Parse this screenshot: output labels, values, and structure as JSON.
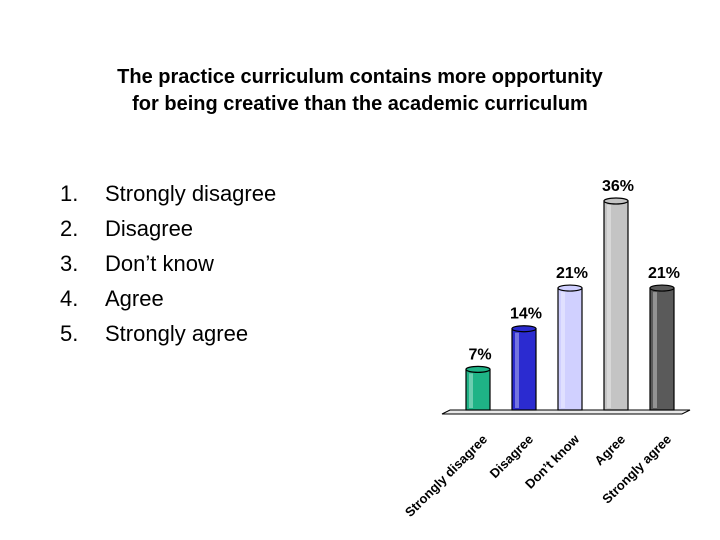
{
  "slide": {
    "title_line1": "The practice curriculum contains more opportunity",
    "title_line2": "for being creative than the academic curriculum",
    "options": [
      {
        "number": "1.",
        "label": "Strongly disagree"
      },
      {
        "number": "2.",
        "label": "Disagree"
      },
      {
        "number": "3.",
        "label": "Don’t know"
      },
      {
        "number": "4.",
        "label": "Agree"
      },
      {
        "number": "5.",
        "label": "Strongly agree"
      }
    ]
  },
  "chart_data": {
    "type": "bar",
    "title": "",
    "xlabel": "",
    "ylabel": "",
    "categories": [
      "Strongly disagree",
      "Disagree",
      "Don’t know",
      "Agree",
      "Strongly agree"
    ],
    "values": [
      7,
      14,
      21,
      36,
      21
    ],
    "value_labels": [
      "7%",
      "14%",
      "21%",
      "36%",
      "21%"
    ],
    "ylim": [
      0,
      36
    ],
    "grid": false,
    "legend": "none",
    "colors": [
      "#1fb386",
      "#2b2bd0",
      "#d0d0ff",
      "#c4c4c4",
      "#5a5a5a"
    ]
  }
}
